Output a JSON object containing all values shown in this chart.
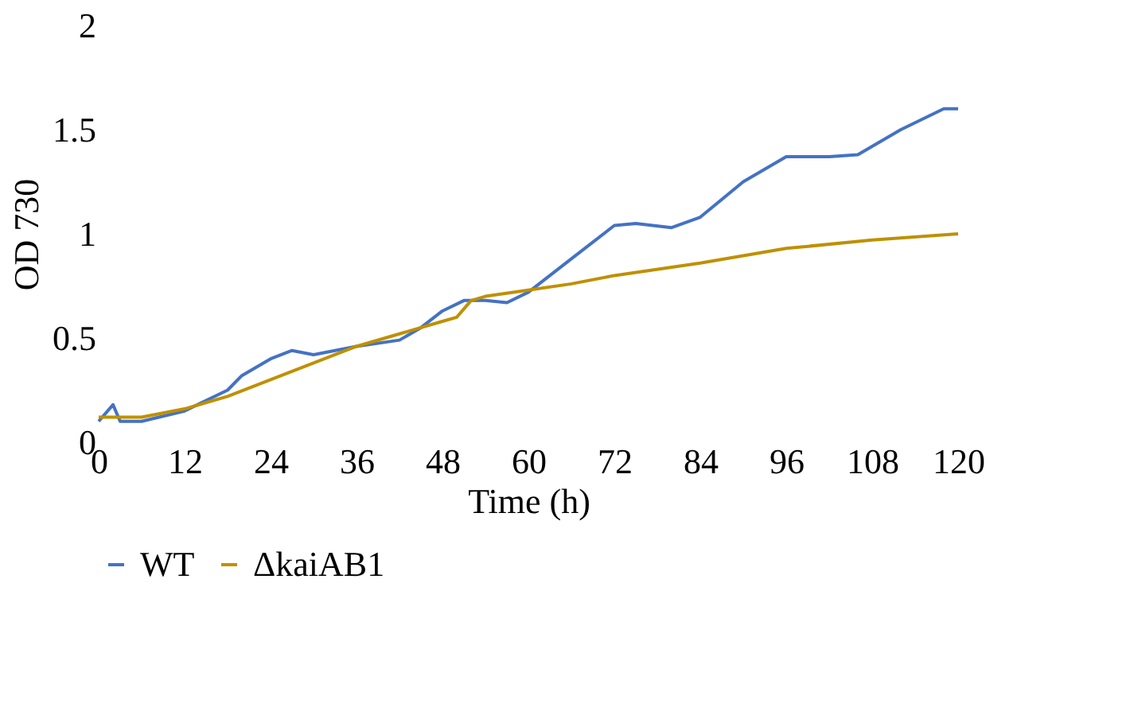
{
  "chart_data": {
    "type": "line",
    "xlabel": "Time (h)",
    "ylabel": "OD 730",
    "xlim": [
      0,
      120
    ],
    "xticks": [
      0,
      12,
      24,
      36,
      48,
      60,
      72,
      84,
      96,
      108,
      120
    ],
    "ylim": [
      0,
      2
    ],
    "yticks": [
      0,
      0.5,
      1,
      1.5,
      2
    ],
    "grid": false,
    "legend": "bottom",
    "line_style": "solid",
    "marker": "none",
    "series": [
      {
        "name": "WT",
        "color": "#4472c4",
        "x": [
          0,
          2,
          3,
          6,
          12,
          18,
          20,
          24,
          27,
          30,
          36,
          42,
          45,
          48,
          51,
          54,
          57,
          60,
          66,
          72,
          75,
          80,
          84,
          90,
          96,
          102,
          106,
          112,
          118,
          120
        ],
        "values": [
          0.1,
          0.18,
          0.1,
          0.1,
          0.15,
          0.25,
          0.32,
          0.4,
          0.44,
          0.42,
          0.46,
          0.49,
          0.55,
          0.63,
          0.68,
          0.68,
          0.67,
          0.72,
          0.88,
          1.04,
          1.05,
          1.03,
          1.08,
          1.25,
          1.37,
          1.37,
          1.38,
          1.5,
          1.6,
          1.6
        ]
      },
      {
        "name": "ΔkaiAB1",
        "color": "#bf9000",
        "x": [
          0,
          6,
          12,
          18,
          24,
          30,
          36,
          42,
          48,
          50,
          52,
          54,
          60,
          66,
          72,
          84,
          96,
          108,
          120
        ],
        "values": [
          0.12,
          0.12,
          0.16,
          0.22,
          0.3,
          0.38,
          0.46,
          0.52,
          0.58,
          0.6,
          0.68,
          0.7,
          0.73,
          0.76,
          0.8,
          0.86,
          0.93,
          0.97,
          1.0
        ]
      }
    ]
  }
}
